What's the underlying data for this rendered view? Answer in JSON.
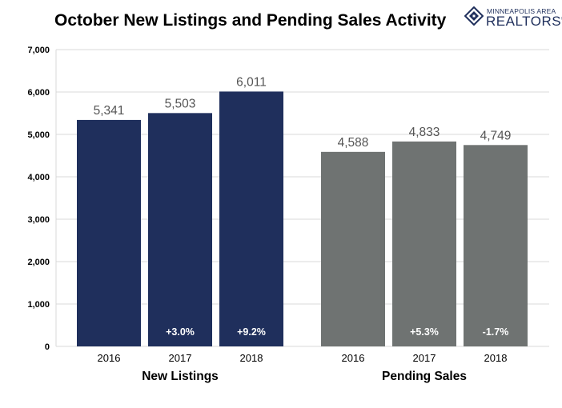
{
  "header": {
    "title": "October New Listings and Pending Sales Activity",
    "logo": {
      "line1": "MINNEAPOLIS AREA",
      "line2": "REALTORS",
      "mark": "®",
      "icon": "diamond-house-icon"
    }
  },
  "colors": {
    "new_listings": "#1f2f5c",
    "pending_sales": "#6f7372",
    "grid": "#d9d9d9"
  },
  "chart_data": {
    "type": "bar",
    "title": "October New Listings and Pending Sales Activity",
    "ylim": [
      0,
      7000
    ],
    "yticks": [
      "0",
      "1,000",
      "2,000",
      "3,000",
      "4,000",
      "5,000",
      "6,000",
      "7,000"
    ],
    "grid": true,
    "groups": [
      {
        "name": "New Listings",
        "bars": [
          {
            "category": "2016",
            "value": 5341,
            "label": "5,341",
            "change": ""
          },
          {
            "category": "2017",
            "value": 5503,
            "label": "5,503",
            "change": "+3.0%"
          },
          {
            "category": "2018",
            "value": 6011,
            "label": "6,011",
            "change": "+9.2%"
          }
        ]
      },
      {
        "name": "Pending Sales",
        "bars": [
          {
            "category": "2016",
            "value": 4588,
            "label": "4,588",
            "change": ""
          },
          {
            "category": "2017",
            "value": 4833,
            "label": "4,833",
            "change": "+5.3%"
          },
          {
            "category": "2018",
            "value": 4749,
            "label": "4,749",
            "change": "-1.7%"
          }
        ]
      }
    ]
  }
}
